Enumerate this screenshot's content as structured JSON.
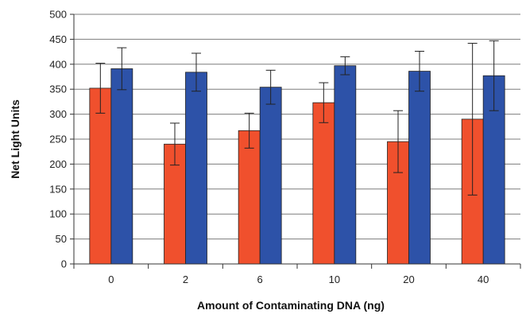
{
  "chart_data": {
    "type": "bar",
    "title": "",
    "xlabel": "Amount of Contaminating DNA (ng)",
    "ylabel": "Net Light Units",
    "categories": [
      "0",
      "2",
      "6",
      "10",
      "20",
      "40"
    ],
    "ylim": [
      0,
      500
    ],
    "yticks": [
      0,
      50,
      100,
      150,
      200,
      250,
      300,
      350,
      400,
      450,
      500
    ],
    "grid": true,
    "series": [
      {
        "color": "#f0502d",
        "values": [
          352,
          240,
          267,
          323,
          245,
          290
        ],
        "error": [
          50,
          42,
          35,
          40,
          62,
          152
        ]
      },
      {
        "color": "#2d52a8",
        "values": [
          391,
          384,
          354,
          397,
          386,
          377
        ],
        "error": [
          42,
          38,
          34,
          18,
          40,
          70
        ]
      }
    ]
  }
}
